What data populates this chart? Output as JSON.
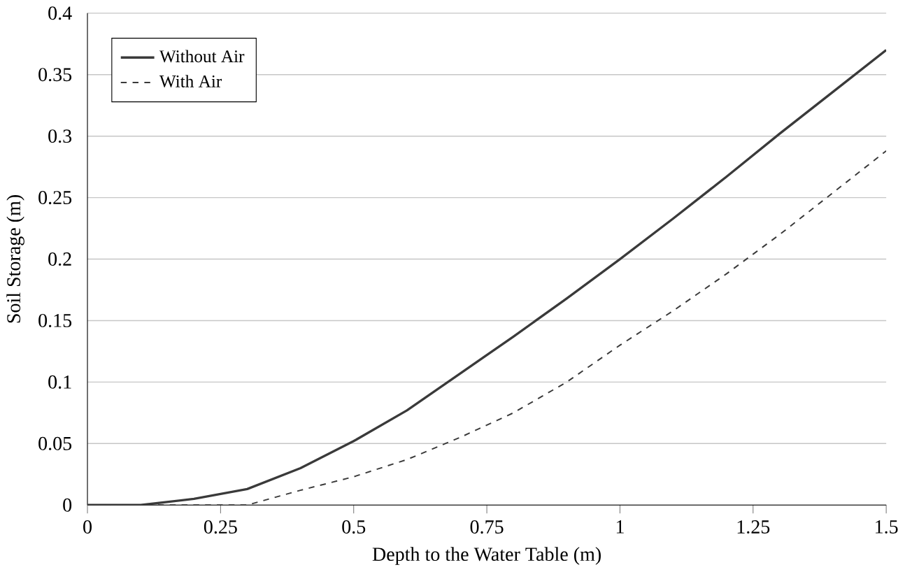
{
  "chart_data": {
    "type": "line",
    "xlabel": "Depth to the Water Table (m)",
    "ylabel": "Soil Storage (m)",
    "x": [
      0,
      0.1,
      0.2,
      0.3,
      0.4,
      0.5,
      0.6,
      0.7,
      0.8,
      0.9,
      1.0,
      1.1,
      1.2,
      1.3,
      1.4,
      1.5
    ],
    "series": [
      {
        "name": "Without Air",
        "color": "#3a3a3a",
        "line_style": "solid",
        "values": [
          0,
          0,
          0.005,
          0.013,
          0.03,
          0.052,
          0.077,
          0.107,
          0.137,
          0.168,
          0.2,
          0.233,
          0.267,
          0.302,
          0.336,
          0.37
        ]
      },
      {
        "name": "With Air",
        "color": "#3a3a3a",
        "line_style": "dashed",
        "values": [
          0,
          0,
          0,
          0,
          0.012,
          0.023,
          0.037,
          0.055,
          0.075,
          0.1,
          0.13,
          0.158,
          0.188,
          0.22,
          0.254,
          0.288
        ]
      }
    ],
    "xlim": [
      0,
      1.5
    ],
    "xticks": [
      0,
      0.25,
      0.5,
      0.75,
      1,
      1.25,
      1.5
    ],
    "ylim": [
      0,
      0.4
    ],
    "yticks": [
      0,
      0.05,
      0.1,
      0.15,
      0.2,
      0.25,
      0.3,
      0.35,
      0.4
    ],
    "grid": "y",
    "legend": "top left",
    "marker": "none"
  }
}
